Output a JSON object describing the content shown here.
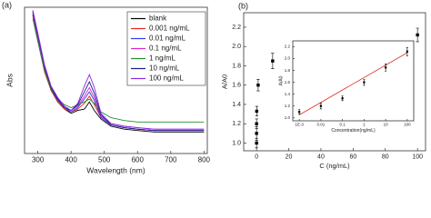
{
  "chart_data": [
    {
      "type": "line",
      "panel_label": "(a)",
      "xlabel": "Wavelength (nm)",
      "ylabel": "Abs",
      "xlim": [
        260,
        810
      ],
      "xticks": [
        300,
        400,
        500,
        600,
        700,
        800
      ],
      "ylim": [
        0,
        1.02
      ],
      "legend": "upper right",
      "x": [
        285,
        300,
        320,
        340,
        360,
        380,
        400,
        420,
        440,
        455,
        470,
        490,
        520,
        560,
        600,
        650,
        700,
        750,
        800
      ],
      "series": [
        {
          "name": "blank",
          "color": "#000000",
          "values": [
            0.97,
            0.8,
            0.58,
            0.44,
            0.36,
            0.31,
            0.28,
            0.3,
            0.31,
            0.36,
            0.3,
            0.24,
            0.19,
            0.17,
            0.16,
            0.15,
            0.15,
            0.15,
            0.15
          ]
        },
        {
          "name": "0.001 ng/mL",
          "color": "#e8261c",
          "values": [
            0.96,
            0.79,
            0.57,
            0.44,
            0.36,
            0.31,
            0.29,
            0.31,
            0.35,
            0.4,
            0.34,
            0.25,
            0.2,
            0.18,
            0.17,
            0.16,
            0.16,
            0.16,
            0.16
          ]
        },
        {
          "name": "0.01 ng/mL",
          "color": "#2a3cf0",
          "values": [
            0.98,
            0.81,
            0.59,
            0.45,
            0.37,
            0.32,
            0.29,
            0.32,
            0.38,
            0.43,
            0.37,
            0.25,
            0.2,
            0.18,
            0.17,
            0.16,
            0.16,
            0.16,
            0.16
          ]
        },
        {
          "name": "0.1 ng/mL",
          "color": "#e020d8",
          "values": [
            0.99,
            0.82,
            0.6,
            0.46,
            0.38,
            0.32,
            0.3,
            0.33,
            0.4,
            0.46,
            0.39,
            0.26,
            0.21,
            0.19,
            0.18,
            0.17,
            0.17,
            0.17,
            0.17
          ]
        },
        {
          "name": "1 ng/mL",
          "color": "#1f8f2a",
          "values": [
            0.94,
            0.78,
            0.58,
            0.45,
            0.38,
            0.34,
            0.32,
            0.34,
            0.36,
            0.38,
            0.35,
            0.29,
            0.25,
            0.23,
            0.22,
            0.22,
            0.22,
            0.22,
            0.22
          ]
        },
        {
          "name": "10 ng/mL",
          "color": "#1a1a8c",
          "values": [
            0.99,
            0.83,
            0.61,
            0.46,
            0.38,
            0.32,
            0.3,
            0.34,
            0.43,
            0.5,
            0.42,
            0.27,
            0.2,
            0.18,
            0.17,
            0.16,
            0.16,
            0.16,
            0.16
          ]
        },
        {
          "name": "100 ng/mL",
          "color": "#8a2be2",
          "values": [
            1.0,
            0.84,
            0.62,
            0.47,
            0.39,
            0.33,
            0.3,
            0.35,
            0.47,
            0.55,
            0.46,
            0.28,
            0.21,
            0.19,
            0.18,
            0.17,
            0.17,
            0.17,
            0.17
          ]
        }
      ]
    },
    {
      "type": "scatter",
      "panel_label": "(b)",
      "xlabel": "C (ng/mL)",
      "ylabel": "A/A0",
      "color": "#000000",
      "xlim": [
        -8,
        105
      ],
      "xticks": [
        0,
        20,
        40,
        60,
        80,
        100
      ],
      "ylim": [
        0.92,
        2.35
      ],
      "yticks": [
        {
          "value": 1.0,
          "label": "1.0"
        },
        {
          "value": 1.2,
          "label": "1.2"
        },
        {
          "value": 1.4,
          "label": "1.4"
        },
        {
          "value": 1.6,
          "label": "1.6"
        },
        {
          "value": 1.8,
          "label": "1.8"
        },
        {
          "value": 2.0,
          "label": "2.0"
        },
        {
          "value": 2.2,
          "label": "2.2"
        }
      ],
      "x": [
        0,
        0.001,
        0.01,
        0.1,
        1,
        10,
        100
      ],
      "values": [
        1.0,
        1.1,
        1.2,
        1.33,
        1.6,
        1.85,
        2.12
      ],
      "errors": [
        0.05,
        0.07,
        0.05,
        0.05,
        0.06,
        0.08,
        0.07
      ]
    },
    {
      "type": "scatter",
      "xlabel": "Concentration(ng/mL)",
      "ylabel": "A/A0",
      "color": "#000000",
      "xscale": "log",
      "xlim": [
        0.0005,
        200
      ],
      "xticks": [
        {
          "value": 0.001,
          "label": "1E-3"
        },
        0.01,
        0.1,
        1,
        10,
        100
      ],
      "ylim": [
        0.95,
        2.3
      ],
      "yticks": [
        {
          "value": 1.0,
          "label": "1.0"
        },
        {
          "value": 1.2,
          "label": "1.2"
        },
        {
          "value": 1.4,
          "label": "1.4"
        },
        {
          "value": 1.6,
          "label": "1.6"
        },
        {
          "value": 1.8,
          "label": "1.8"
        },
        {
          "value": 2.0,
          "label": "2.0"
        },
        {
          "value": 2.2,
          "label": "2.2"
        }
      ],
      "x": [
        0.001,
        0.01,
        0.1,
        1,
        10,
        100
      ],
      "values": [
        1.1,
        1.2,
        1.33,
        1.6,
        1.85,
        2.12
      ],
      "errors": [
        0.04,
        0.05,
        0.04,
        0.05,
        0.06,
        0.07
      ],
      "fit": {
        "color": "#e03020",
        "x": [
          0.001,
          100
        ],
        "values": [
          1.05,
          2.1
        ]
      }
    }
  ]
}
